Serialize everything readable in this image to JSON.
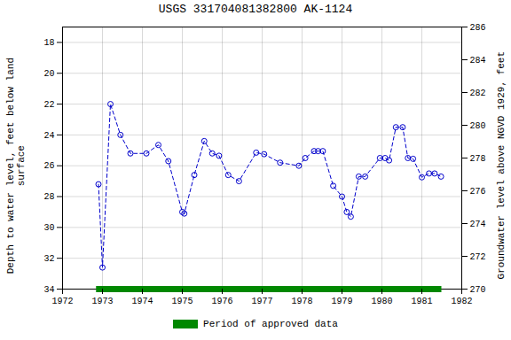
{
  "chart_data": {
    "type": "line",
    "title": "USGS 331704081382800 AK-1124",
    "ylabel": "Depth to water level, feet below land\nsurface",
    "y2label": "Groundwater level above NGVD 1929, feet",
    "x": [
      1972.9,
      1973.0,
      1973.2,
      1973.45,
      1973.7,
      1974.1,
      1974.4,
      1974.65,
      1975.0,
      1975.05,
      1975.3,
      1975.55,
      1975.75,
      1975.92,
      1976.15,
      1976.42,
      1976.85,
      1977.05,
      1977.45,
      1977.92,
      1978.08,
      1978.3,
      1978.4,
      1978.52,
      1978.78,
      1979.0,
      1979.12,
      1979.22,
      1979.42,
      1979.58,
      1979.95,
      1980.08,
      1980.18,
      1980.35,
      1980.52,
      1980.65,
      1980.78,
      1981.0,
      1981.18,
      1981.32,
      1981.48
    ],
    "values": [
      27.2,
      32.6,
      22.0,
      24.0,
      25.2,
      25.2,
      24.65,
      25.7,
      29.0,
      29.1,
      26.6,
      24.4,
      25.2,
      25.35,
      26.6,
      27.0,
      25.15,
      25.25,
      25.8,
      26.0,
      25.5,
      25.05,
      25.05,
      25.05,
      27.3,
      28.0,
      29.0,
      29.3,
      26.7,
      26.7,
      25.5,
      25.5,
      25.65,
      23.5,
      23.5,
      25.5,
      25.55,
      26.75,
      26.5,
      26.5,
      26.7
    ],
    "color": "#0000cc",
    "marker": "circle",
    "line_style": "dashed",
    "xlim": [
      1972,
      1982
    ],
    "xticks": [
      1972,
      1973,
      1974,
      1975,
      1976,
      1977,
      1978,
      1979,
      1980,
      1981,
      1982
    ],
    "ylim": [
      34,
      17
    ],
    "yticks": [
      18,
      20,
      22,
      24,
      26,
      28,
      30,
      32,
      34
    ],
    "y2lim": [
      270,
      286
    ],
    "y2ticks": [
      270,
      272,
      274,
      276,
      278,
      280,
      282,
      284,
      286
    ],
    "grid": true,
    "legend": "bottom",
    "period": {
      "name": "Period of approved data",
      "color": "#008800",
      "x": [
        1972.85,
        1981.5
      ]
    }
  }
}
